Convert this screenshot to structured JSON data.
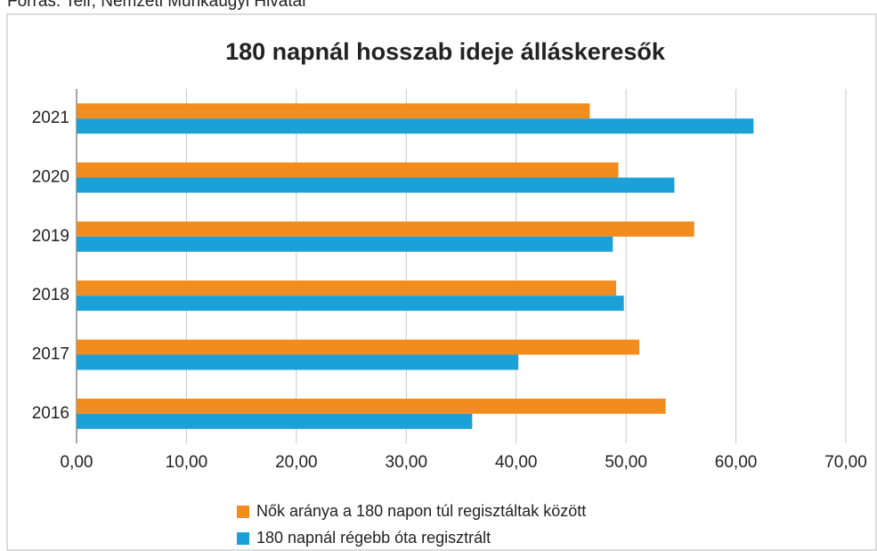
{
  "source": "Forrás: Teir, Nemzeti Munkaügyi Hivatal",
  "chart_data": {
    "type": "bar",
    "orientation": "horizontal",
    "title": "180 napnál hosszab ideje álláskeresők",
    "categories": [
      "2016",
      "2017",
      "2018",
      "2019",
      "2020",
      "2021"
    ],
    "series": [
      {
        "name": "Nők aránya a 180 napon túl regisztáltak között",
        "color": "#f28c1e",
        "values": [
          53.6,
          51.2,
          49.1,
          56.2,
          49.3,
          46.7
        ]
      },
      {
        "name": "180 napnál régebb óta regisztrált",
        "color": "#1ba1d8",
        "values": [
          36.0,
          40.2,
          49.8,
          48.8,
          54.4,
          61.6
        ]
      }
    ],
    "xlim": [
      0,
      70
    ],
    "xticks": [
      {
        "value": 0,
        "label": "0,00"
      },
      {
        "value": 10,
        "label": "10,00"
      },
      {
        "value": 20,
        "label": "20,00"
      },
      {
        "value": 30,
        "label": "30,00"
      },
      {
        "value": 40,
        "label": "40,00"
      },
      {
        "value": 50,
        "label": "50,00"
      },
      {
        "value": 60,
        "label": "60,00"
      },
      {
        "value": 70,
        "label": "70,00"
      }
    ],
    "grid": true,
    "legend": "bottom"
  }
}
